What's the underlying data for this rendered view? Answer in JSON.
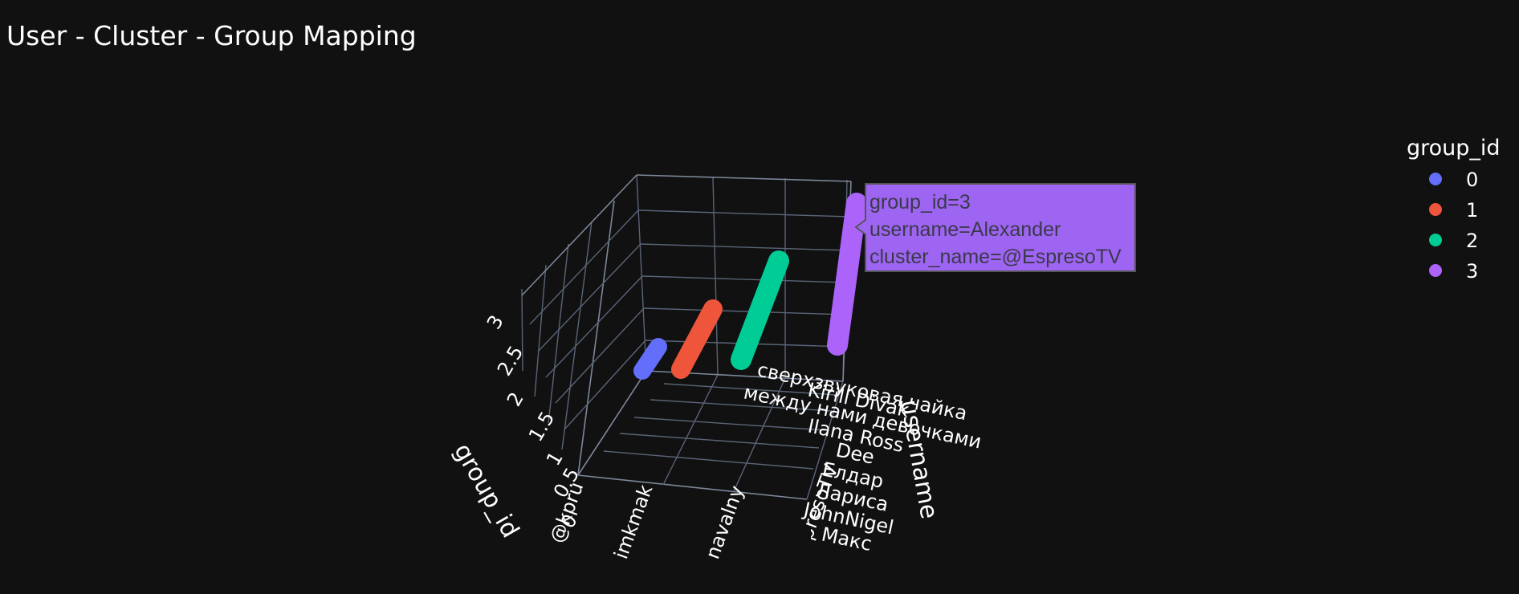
{
  "chart_data": {
    "type": "scatter",
    "title": "User - Cluster - Group Mapping",
    "axes": {
      "x": {
        "title": "",
        "tick_labels": [
          "@kpru",
          "imkmak",
          "navalny",
          "EspresoTV"
        ]
      },
      "y": {
        "title": "username",
        "tick_labels": [
          "сверхзвуковая чайка",
          "Kirill Divak",
          "между нами девочками",
          "Ilana Ross",
          "Dee",
          "Елдар",
          "Лариса",
          "JohnNigel",
          "Макс"
        ]
      },
      "z": {
        "title": "group_id",
        "tick_labels": [
          "0",
          "0.5",
          "1",
          "1.5",
          "2",
          "2.5",
          "3"
        ],
        "range": [
          0,
          3
        ]
      }
    },
    "legend": {
      "title": "group_id",
      "placement": "right",
      "items": [
        {
          "label": "0",
          "color": "#636efa"
        },
        {
          "label": "1",
          "color": "#ef553b"
        },
        {
          "label": "2",
          "color": "#00cc96"
        },
        {
          "label": "3",
          "color": "#ab63fa"
        }
      ]
    },
    "series": [
      {
        "name": "0",
        "group_id": 0,
        "cluster_name": "@kpru",
        "color": "#636efa"
      },
      {
        "name": "1",
        "group_id": 1,
        "cluster_name": "imkmak",
        "color": "#ef553b"
      },
      {
        "name": "2",
        "group_id": 2,
        "cluster_name": "navalny",
        "color": "#00cc96"
      },
      {
        "name": "3",
        "group_id": 3,
        "cluster_name": "EspresoTV",
        "color": "#ab63fa"
      }
    ],
    "tooltip": {
      "lines": [
        "group_id=3",
        "username=Alexander",
        "cluster_name=@EspresoTV"
      ],
      "color": "#9e64f2"
    }
  }
}
